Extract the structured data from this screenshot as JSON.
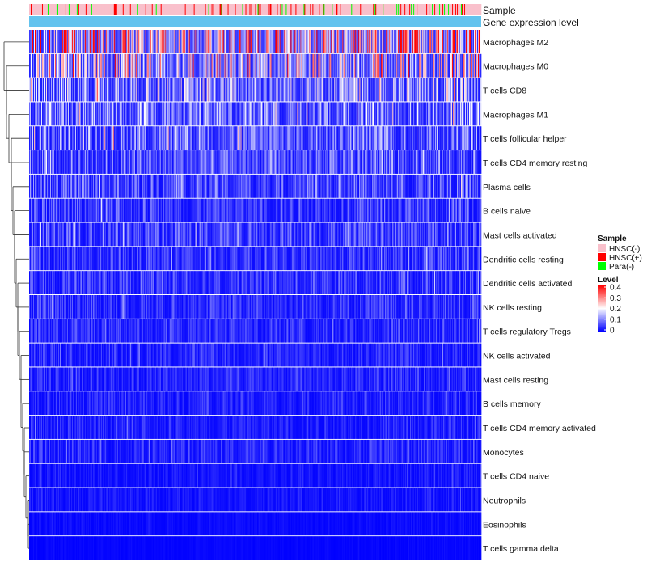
{
  "chart_data": {
    "type": "heatmap",
    "title": "",
    "rows": [
      "Macrophages M2",
      "Macrophages M0",
      "T cells CD8",
      "Macrophages M1",
      "T cells follicular helper",
      "T cells CD4 memory resting",
      "Plasma cells",
      "B cells naive",
      "Mast cells activated",
      "Dendritic cells resting",
      "Dendritic cells activated",
      "NK cells resting",
      "T cells regulatory  Tregs",
      "NK cells activated",
      "Mast cells resting",
      "B cells memory",
      "T cells CD4 memory activated",
      "Monocytes",
      "T cells CD4 naive",
      "Neutrophils",
      "Eosinophils",
      "T cells gamma delta"
    ],
    "row_mean_level": [
      0.22,
      0.17,
      0.12,
      0.1,
      0.09,
      0.075,
      0.065,
      0.055,
      0.06,
      0.05,
      0.05,
      0.045,
      0.04,
      0.035,
      0.035,
      0.03,
      0.03,
      0.035,
      0.02,
      0.02,
      0.01,
      0.005
    ],
    "n_samples": 560,
    "column_annotations": [
      {
        "name": "Sample",
        "categories": [
          "HNSC(-)",
          "HNSC(+)",
          "Para(-)"
        ],
        "colors": [
          "#f9c0cb",
          "#ff0000",
          "#00ff00"
        ]
      },
      {
        "name": "Gene expression level"
      }
    ],
    "color_scale": {
      "name": "Level",
      "min": 0,
      "max": 0.4,
      "ticks": [
        "0.4",
        "0.3",
        "0.2",
        "0.1",
        "0"
      ],
      "colors": [
        "#0000ff",
        "#ffffff",
        "#ff0000"
      ]
    },
    "annotation_colors": {
      "gene_expression_level": "#63c3ee"
    },
    "dendrogram": "rows"
  },
  "legend": {
    "sample_title": "Sample",
    "sample_items": [
      "HNSC(-)",
      "HNSC(+)",
      "Para(-)"
    ],
    "level_title": "Level",
    "level_ticks": [
      "0.4",
      "0.3",
      "0.2",
      "0.1",
      "0"
    ]
  },
  "annotation_labels": {
    "sample": "Sample",
    "gene_expression_level": "Gene expression level"
  }
}
